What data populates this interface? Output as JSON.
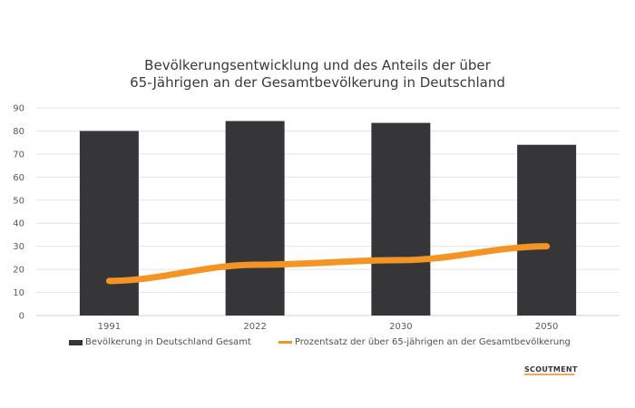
{
  "chart_data": {
    "type": "bar",
    "title_lines": [
      "Bevölkerungsentwicklung und des Anteils der über",
      "65-Jährigen an der Gesamtbevölkerung in Deutschland"
    ],
    "categories": [
      "1991",
      "2022",
      "2030",
      "2050"
    ],
    "series": [
      {
        "name": "Bevölkerung in Deutschland Gesamt",
        "type": "bar",
        "values": [
          80,
          84.3,
          83.5,
          74
        ],
        "color": "#363639"
      },
      {
        "name": "Prozentsatz der über 65-jährigen an der Gesamtbevölkerung",
        "type": "line",
        "values": [
          15,
          22,
          24,
          30
        ],
        "color": "#f39424"
      }
    ],
    "ylim": [
      0,
      90
    ],
    "yticks": [
      "0",
      "10",
      "20",
      "30",
      "40",
      "50",
      "60",
      "70",
      "80",
      "90"
    ],
    "xlabel": "",
    "ylabel": "",
    "grid": true,
    "legend_position": "bottom"
  },
  "brand": {
    "logo_text": "SCOUTMENT"
  }
}
